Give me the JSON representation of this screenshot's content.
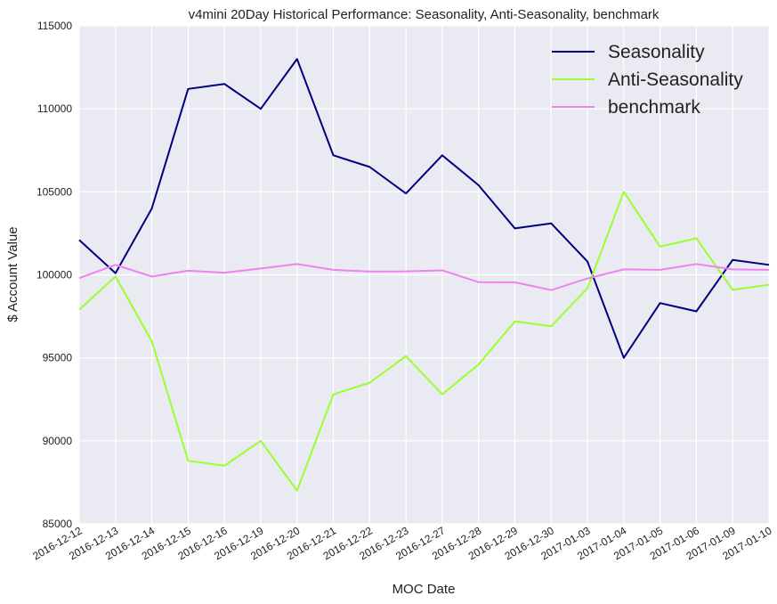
{
  "chart_data": {
    "type": "line",
    "title": "v4mini 20Day Historical Performance: Seasonality, Anti-Seasonality, benchmark",
    "xlabel": "MOC Date",
    "ylabel": "$ Account Value",
    "ylim": [
      85000,
      115000
    ],
    "yticks": [
      85000,
      90000,
      95000,
      100000,
      105000,
      110000,
      115000
    ],
    "grid": true,
    "legend_position": "top-right",
    "categories": [
      "2016-12-12",
      "2016-12-13",
      "2016-12-14",
      "2016-12-15",
      "2016-12-16",
      "2016-12-19",
      "2016-12-20",
      "2016-12-21",
      "2016-12-22",
      "2016-12-23",
      "2016-12-27",
      "2016-12-28",
      "2016-12-29",
      "2016-12-30",
      "2017-01-03",
      "2017-01-04",
      "2017-01-05",
      "2017-01-06",
      "2017-01-09",
      "2017-01-10"
    ],
    "series": [
      {
        "name": "Seasonality",
        "color": "#000080",
        "values": [
          102100,
          100100,
          104000,
          111200,
          111500,
          110000,
          113000,
          107200,
          106500,
          104900,
          107200,
          105400,
          102800,
          103100,
          100800,
          95000,
          98300,
          97800,
          100900,
          100600
        ]
      },
      {
        "name": "Anti-Seasonality",
        "color": "#9aff2e",
        "values": [
          97900,
          99900,
          96000,
          88800,
          88500,
          90000,
          87000,
          92800,
          93500,
          95100,
          92800,
          94600,
          97200,
          96900,
          99200,
          105000,
          101700,
          102200,
          99100,
          99400
        ]
      },
      {
        "name": "benchmark",
        "color": "#ee82ee",
        "values": [
          99800,
          100600,
          99900,
          100250,
          100130,
          100380,
          100650,
          100300,
          100200,
          100210,
          100270,
          99560,
          99550,
          99080,
          99780,
          100330,
          100300,
          100650,
          100330,
          100300
        ]
      }
    ]
  }
}
